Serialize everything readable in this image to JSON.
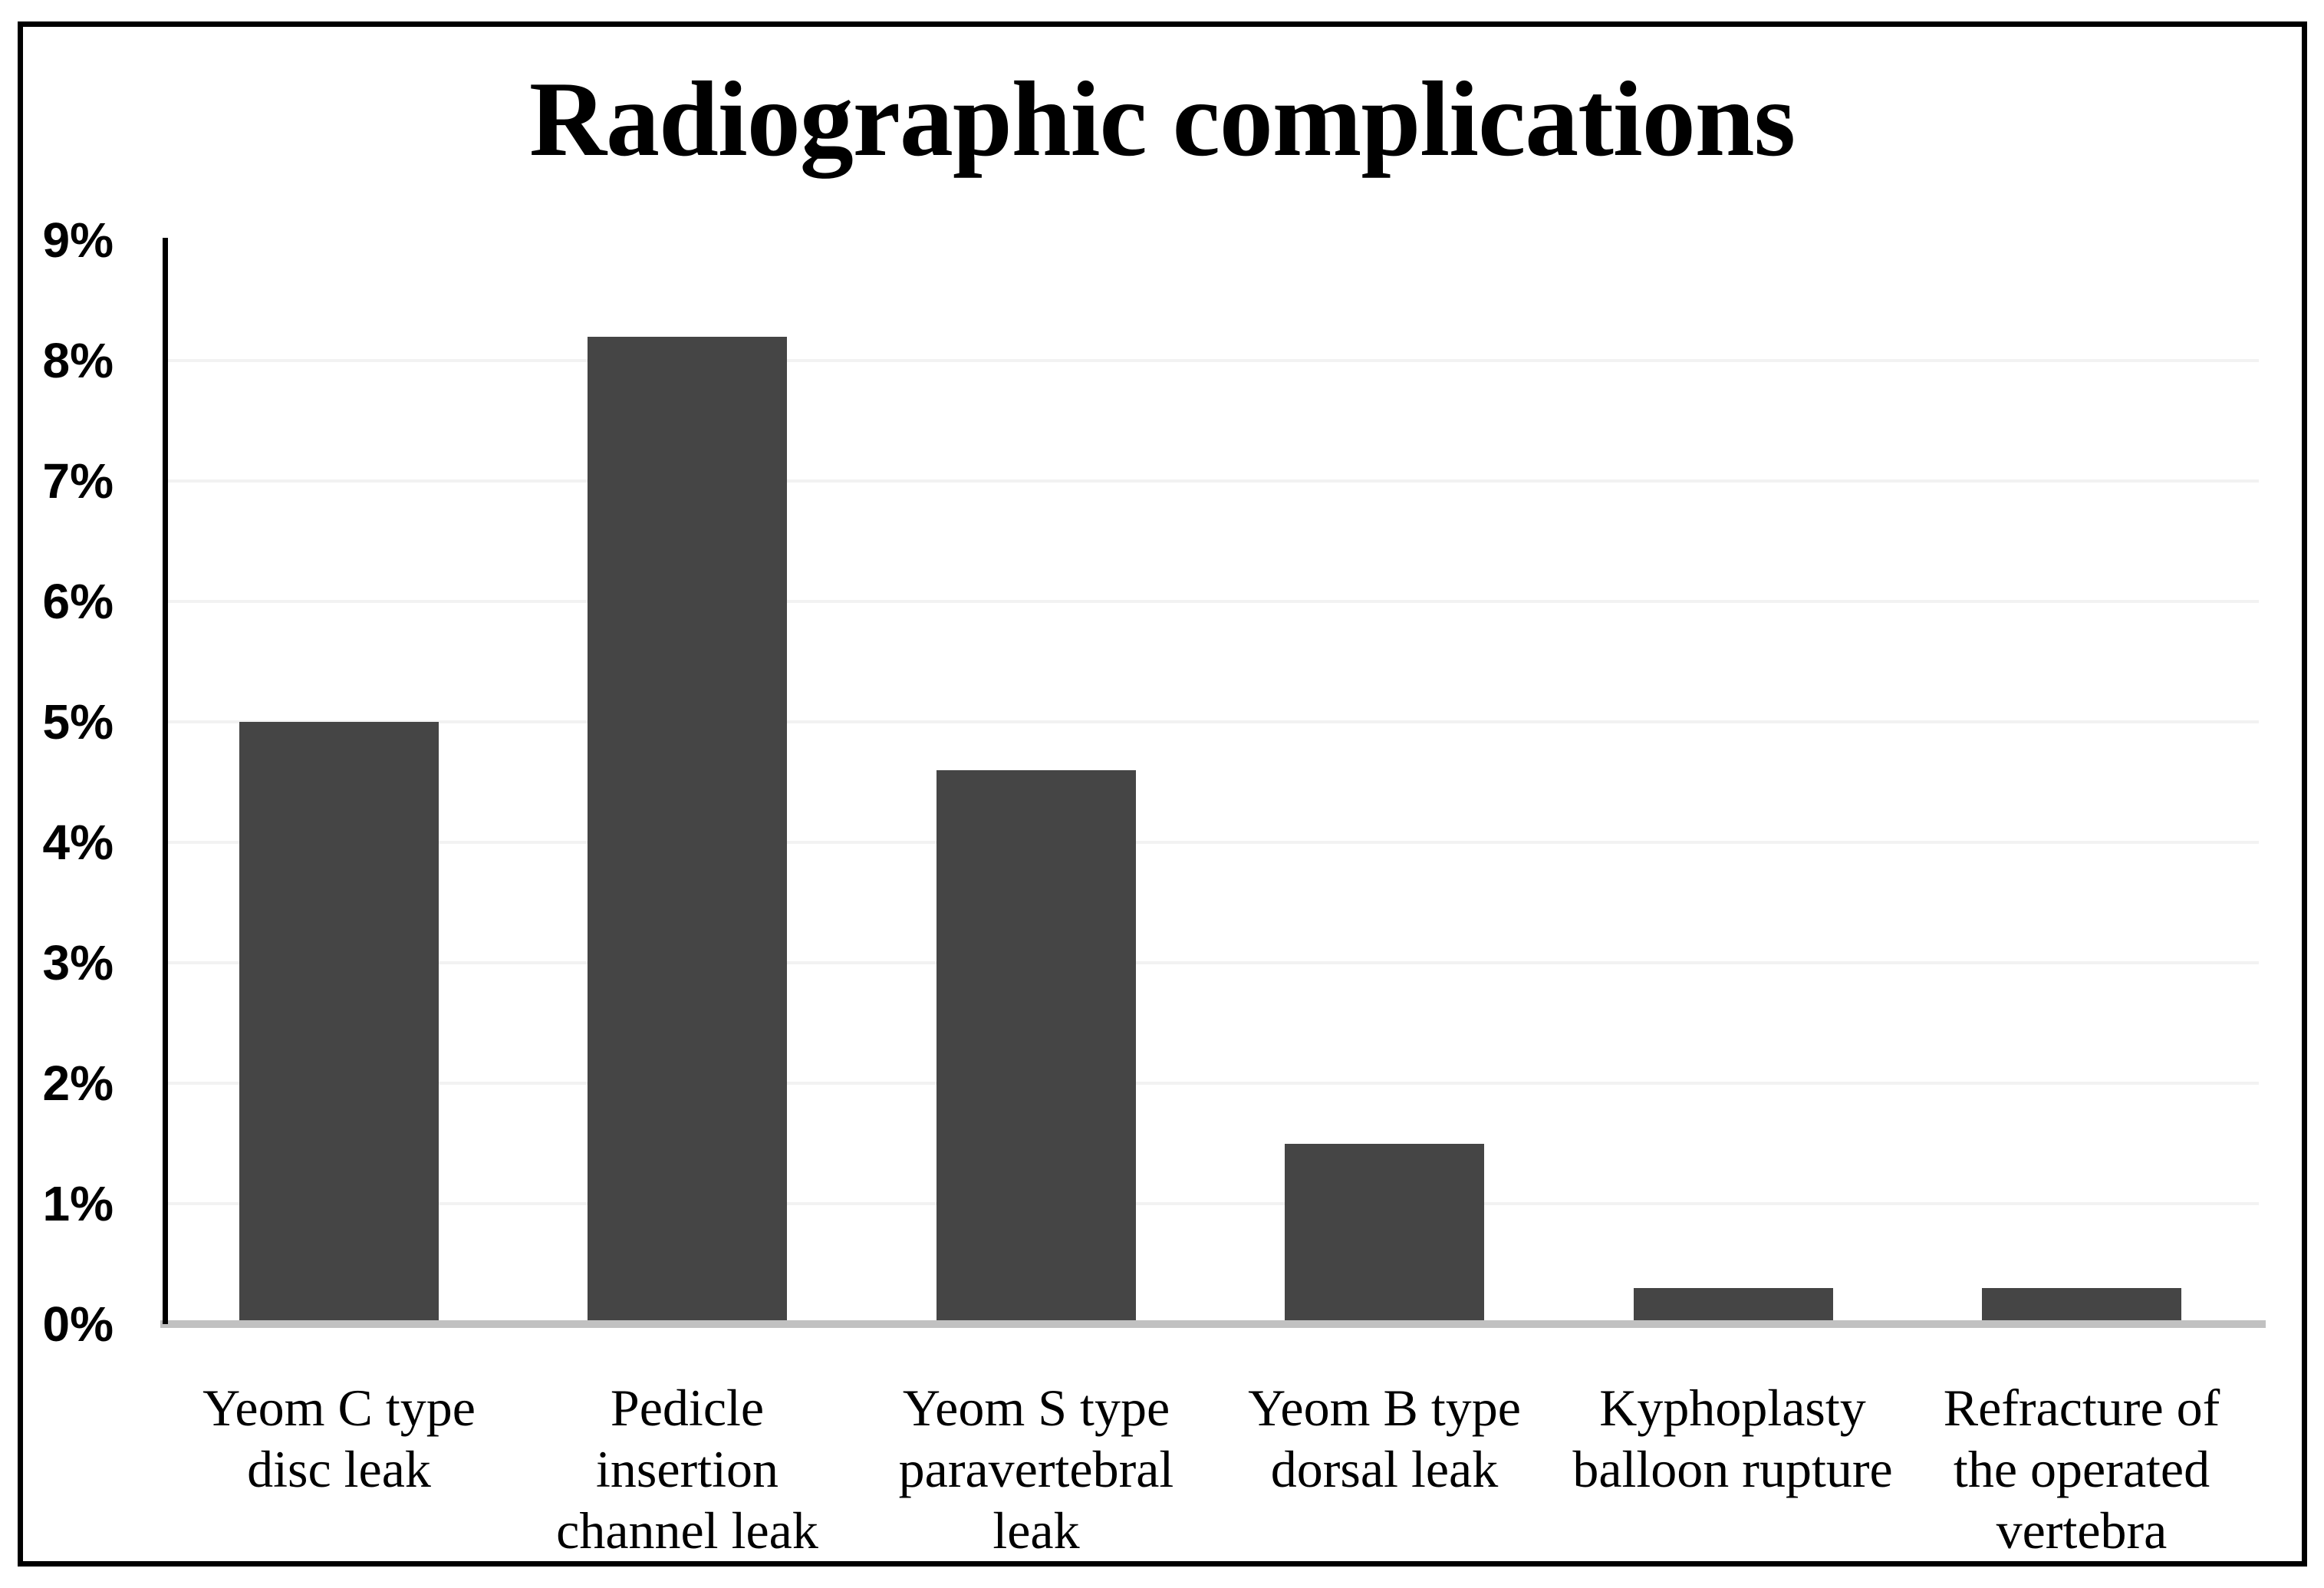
{
  "chart_data": {
    "type": "bar",
    "title": "Radiographic complications",
    "categories": [
      "Yeom C type disc leak",
      "Pedicle insertion channel leak",
      "Yeom S type paravertebral leak",
      "Yeom B type dorsal leak",
      "Kyphoplasty balloon rupture",
      "Refracture of the operated vertebra"
    ],
    "category_lines": [
      [
        "Yeom C type",
        "disc leak"
      ],
      [
        "Pedicle",
        "insertion",
        "channel leak"
      ],
      [
        "Yeom S type",
        "paravertebral",
        "leak"
      ],
      [
        "Yeom B type",
        "dorsal leak"
      ],
      [
        "Kyphoplasty",
        "balloon rupture"
      ],
      [
        "Refracture of",
        "the operated",
        "vertebra"
      ]
    ],
    "values": [
      5.0,
      8.2,
      4.6,
      1.5,
      0.3,
      0.3
    ],
    "unit": "%",
    "xlabel": "",
    "ylabel": "",
    "ylim": [
      0,
      9
    ],
    "ytick_step": 1,
    "ytick_labels": [
      "0%",
      "1%",
      "2%",
      "3%",
      "4%",
      "5%",
      "6%",
      "7%",
      "8%",
      "9%"
    ],
    "grid": true,
    "legend": "none",
    "colors": {
      "bar": "#454545",
      "gridline": "#f2f2f2",
      "baseline": "#c1c1c1",
      "axis": "#000000",
      "text": "#000000",
      "frame_border": "#000000",
      "background": "#ffffff"
    }
  }
}
